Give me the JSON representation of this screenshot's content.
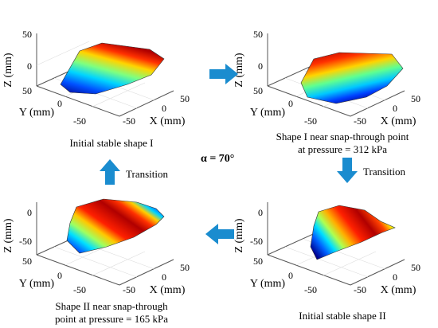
{
  "figure": {
    "alpha_label": "α = 70°",
    "colors": {
      "arrow": "#1a8ccf",
      "edge": "#444444"
    },
    "arrows": [
      {
        "direction": "right",
        "label": ""
      },
      {
        "direction": "down",
        "label": "Transition"
      },
      {
        "direction": "left",
        "label": ""
      },
      {
        "direction": "up",
        "label": "Transition"
      }
    ],
    "panels": [
      {
        "id": "tl",
        "caption_lines": [
          "Initial stable shape I"
        ],
        "z_ticks": [
          "50",
          "0"
        ],
        "z_label": "Z (mm)",
        "y_ticks": [
          "50",
          "0",
          "-50"
        ],
        "y_label": "Y (mm)",
        "x_ticks": [
          "50",
          "0",
          "-50"
        ],
        "x_label": "X (mm)",
        "surface_colormap": "jet"
      },
      {
        "id": "tr",
        "caption_lines": [
          "Shape I near snap-through point",
          "at pressure = 312 kPa"
        ],
        "z_ticks": [
          "50",
          "0"
        ],
        "z_label": "Z (mm)",
        "y_ticks": [
          "50",
          "0",
          "-50"
        ],
        "y_label": "Y (mm)",
        "x_ticks": [
          "50",
          "0",
          "-50"
        ],
        "x_label": "X (mm)",
        "surface_colormap": "jet"
      },
      {
        "id": "bl",
        "caption_lines": [
          "Shape II near snap-through",
          "point at pressure = 165 kPa"
        ],
        "z_ticks": [
          "0",
          "-50"
        ],
        "z_label": "Z (mm)",
        "y_ticks": [
          "50",
          "0",
          "-50"
        ],
        "y_label": "Y (mm)",
        "x_ticks": [
          "50",
          "0",
          "-50"
        ],
        "x_label": "X (mm)",
        "surface_colormap": "jet"
      },
      {
        "id": "br",
        "caption_lines": [
          "Initial stable shape II"
        ],
        "z_ticks": [
          "0",
          "-50"
        ],
        "z_label": "Z (mm)",
        "y_ticks": [
          "50",
          "0",
          "-50"
        ],
        "y_label": "Y (mm)",
        "x_ticks": [
          "50",
          "0",
          "-50"
        ],
        "x_label": "X (mm)",
        "surface_colormap": "jet"
      }
    ]
  }
}
